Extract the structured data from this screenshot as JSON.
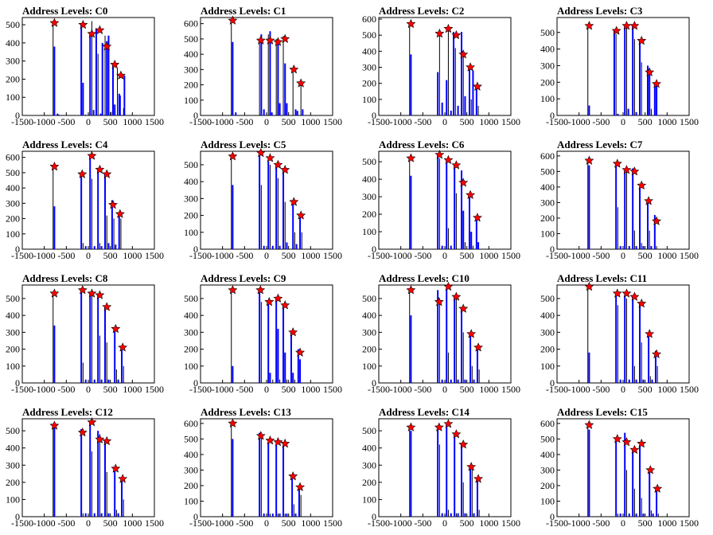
{
  "chart_data": [
    {
      "type": "bar",
      "title": "Address Levels: C0",
      "xlim": [
        -1500,
        1500
      ],
      "ylim": [
        0,
        540
      ],
      "xticks": [
        -1500,
        -1000,
        -500,
        0,
        500,
        1000,
        1500
      ],
      "yticks": [
        0,
        100,
        200,
        300,
        400,
        500
      ],
      "x": [
        -800,
        -770,
        -700,
        -670,
        -160,
        -120,
        -60,
        -30,
        40,
        80,
        120,
        180,
        220,
        280,
        320,
        380,
        420,
        460,
        520,
        560,
        600,
        660,
        700,
        720,
        800,
        820
      ],
      "values": [
        520,
        380,
        10,
        5,
        500,
        180,
        5,
        2,
        460,
        520,
        30,
        480,
        340,
        10,
        400,
        440,
        410,
        440,
        20,
        280,
        60,
        260,
        120,
        110,
        40,
        220
      ],
      "markers": {
        "x": [
          -770,
          -120,
          80,
          260,
          420,
          600,
          740
        ],
        "y": [
          510,
          500,
          450,
          470,
          380,
          280,
          220
        ]
      }
    },
    {
      "type": "bar",
      "title": "Address Levels: C1",
      "xlim": [
        -1500,
        1500
      ],
      "ylim": [
        0,
        640
      ],
      "xticks": [
        -1500,
        -1000,
        -500,
        0,
        500,
        1000,
        1500
      ],
      "yticks": [
        0,
        100,
        200,
        300,
        400,
        500,
        600
      ],
      "x": [
        -800,
        -770,
        -700,
        -160,
        -120,
        -60,
        40,
        80,
        120,
        220,
        260,
        300,
        380,
        420,
        460,
        600,
        660,
        700,
        780,
        820
      ],
      "values": [
        620,
        480,
        20,
        490,
        530,
        40,
        530,
        550,
        20,
        500,
        480,
        80,
        520,
        340,
        80,
        300,
        40,
        30,
        200,
        40
      ],
      "markers": {
        "x": [
          -770,
          -130,
          80,
          260,
          420,
          620,
          780
        ],
        "y": [
          620,
          490,
          490,
          480,
          500,
          300,
          210
        ]
      }
    },
    {
      "type": "bar",
      "title": "Address Levels: C2",
      "xlim": [
        -1500,
        1500
      ],
      "ylim": [
        0,
        610
      ],
      "xticks": [
        -1500,
        -1000,
        -500,
        0,
        500,
        1000,
        1500
      ],
      "yticks": [
        0,
        100,
        200,
        300,
        400,
        500,
        600
      ],
      "x": [
        -800,
        -770,
        -160,
        -120,
        -60,
        40,
        80,
        140,
        200,
        240,
        300,
        380,
        420,
        460,
        560,
        600,
        640,
        720,
        760
      ],
      "values": [
        570,
        380,
        270,
        520,
        80,
        220,
        540,
        30,
        520,
        420,
        60,
        520,
        370,
        120,
        300,
        100,
        280,
        180,
        60
      ],
      "markers": {
        "x": [
          -770,
          -120,
          80,
          260,
          420,
          580,
          740
        ],
        "y": [
          570,
          510,
          540,
          500,
          380,
          300,
          180
        ]
      }
    },
    {
      "type": "bar",
      "title": "Address Levels: C3",
      "xlim": [
        -1500,
        1500
      ],
      "ylim": [
        0,
        590
      ],
      "xticks": [
        -1500,
        -1000,
        -500,
        0,
        500,
        1000,
        1500
      ],
      "yticks": [
        0,
        100,
        200,
        300,
        400,
        500
      ],
      "x": [
        -800,
        -770,
        -200,
        -160,
        -120,
        40,
        80,
        120,
        220,
        260,
        300,
        380,
        420,
        560,
        600,
        640,
        720,
        760
      ],
      "values": [
        540,
        60,
        510,
        490,
        10,
        540,
        550,
        40,
        540,
        460,
        20,
        460,
        320,
        300,
        260,
        40,
        200,
        180
      ],
      "markers": {
        "x": [
          -770,
          -150,
          80,
          260,
          420,
          600,
          760
        ],
        "y": [
          540,
          510,
          540,
          540,
          450,
          260,
          190
        ]
      }
    },
    {
      "type": "bar",
      "title": "Address Levels: C4",
      "xlim": [
        -1500,
        1500
      ],
      "ylim": [
        0,
        640
      ],
      "xticks": [
        -1500,
        -1000,
        -500,
        0,
        500,
        1000,
        1500
      ],
      "yticks": [
        0,
        100,
        200,
        300,
        400,
        500,
        600
      ],
      "x": [
        -800,
        -770,
        -160,
        -120,
        -60,
        40,
        80,
        140,
        220,
        260,
        300,
        380,
        420,
        460,
        540,
        580,
        620,
        700,
        740
      ],
      "values": [
        540,
        280,
        500,
        40,
        20,
        620,
        460,
        20,
        530,
        40,
        20,
        500,
        220,
        40,
        320,
        200,
        30,
        240,
        200
      ],
      "markers": {
        "x": [
          -770,
          -140,
          80,
          260,
          420,
          560,
          720
        ],
        "y": [
          540,
          490,
          610,
          520,
          490,
          290,
          230
        ]
      }
    },
    {
      "type": "bar",
      "title": "Address Levels: C5",
      "xlim": [
        -1500,
        1500
      ],
      "ylim": [
        0,
        580
      ],
      "xticks": [
        -1500,
        -1000,
        -500,
        0,
        500,
        1000,
        1500
      ],
      "yticks": [
        0,
        100,
        200,
        300,
        400,
        500
      ],
      "x": [
        -800,
        -770,
        -160,
        -120,
        -60,
        40,
        80,
        140,
        220,
        260,
        300,
        380,
        420,
        460,
        600,
        640,
        680,
        760,
        800
      ],
      "values": [
        550,
        380,
        560,
        380,
        20,
        520,
        500,
        20,
        500,
        420,
        20,
        470,
        280,
        40,
        280,
        100,
        30,
        200,
        100
      ],
      "markers": {
        "x": [
          -770,
          -130,
          80,
          260,
          420,
          620,
          780
        ],
        "y": [
          550,
          570,
          540,
          500,
          470,
          280,
          200
        ]
      }
    },
    {
      "type": "bar",
      "title": "Address Levels: C6",
      "xlim": [
        -1500,
        1500
      ],
      "ylim": [
        0,
        560
      ],
      "xticks": [
        -1500,
        -1000,
        -500,
        0,
        500,
        1000,
        1500
      ],
      "yticks": [
        0,
        100,
        200,
        300,
        400,
        500
      ],
      "x": [
        -800,
        -770,
        -160,
        -120,
        -60,
        40,
        80,
        140,
        220,
        260,
        380,
        420,
        460,
        560,
        600,
        640,
        720,
        760
      ],
      "values": [
        520,
        420,
        540,
        520,
        20,
        510,
        120,
        20,
        480,
        320,
        450,
        220,
        40,
        300,
        100,
        20,
        180,
        40
      ],
      "markers": {
        "x": [
          -770,
          -120,
          80,
          260,
          420,
          580,
          740
        ],
        "y": [
          520,
          540,
          510,
          480,
          380,
          310,
          180
        ]
      }
    },
    {
      "type": "bar",
      "title": "Address Levels: C7",
      "xlim": [
        -1500,
        1500
      ],
      "ylim": [
        0,
        630
      ],
      "xticks": [
        -1500,
        -1000,
        -500,
        0,
        500,
        1000,
        1500
      ],
      "yticks": [
        0,
        100,
        200,
        300,
        400,
        500,
        600
      ],
      "x": [
        -800,
        -770,
        -160,
        -120,
        -60,
        40,
        80,
        140,
        220,
        260,
        300,
        380,
        420,
        460,
        560,
        600,
        640,
        720,
        760
      ],
      "values": [
        570,
        540,
        540,
        270,
        20,
        520,
        500,
        20,
        520,
        120,
        20,
        400,
        40,
        20,
        320,
        120,
        20,
        220,
        20
      ],
      "markers": {
        "x": [
          -770,
          -130,
          80,
          260,
          420,
          580,
          760
        ],
        "y": [
          570,
          550,
          510,
          500,
          410,
          310,
          180
        ]
      }
    },
    {
      "type": "bar",
      "title": "Address Levels: C8",
      "xlim": [
        -1500,
        1500
      ],
      "ylim": [
        0,
        580
      ],
      "xticks": [
        -1500,
        -1000,
        -500,
        0,
        500,
        1000,
        1500
      ],
      "yticks": [
        0,
        100,
        200,
        300,
        400,
        500
      ],
      "x": [
        -800,
        -770,
        -160,
        -120,
        -60,
        40,
        80,
        140,
        220,
        260,
        300,
        380,
        420,
        460,
        600,
        640,
        680,
        760,
        800
      ],
      "values": [
        530,
        340,
        550,
        120,
        20,
        530,
        520,
        20,
        520,
        280,
        20,
        460,
        240,
        20,
        320,
        80,
        20,
        210,
        100
      ],
      "markers": {
        "x": [
          -770,
          -130,
          80,
          260,
          420,
          620,
          780
        ],
        "y": [
          530,
          550,
          530,
          520,
          450,
          320,
          210
        ]
      }
    },
    {
      "type": "bar",
      "title": "Address Levels: C9",
      "xlim": [
        -1500,
        1500
      ],
      "ylim": [
        0,
        580
      ],
      "xticks": [
        -1500,
        -1000,
        -500,
        0,
        500,
        1000,
        1500
      ],
      "yticks": [
        0,
        100,
        200,
        300,
        400,
        500
      ],
      "x": [
        -800,
        -770,
        -160,
        -120,
        40,
        80,
        140,
        220,
        260,
        300,
        380,
        420,
        460,
        560,
        600,
        640,
        720,
        760
      ],
      "values": [
        550,
        100,
        550,
        480,
        480,
        60,
        20,
        500,
        320,
        20,
        460,
        180,
        20,
        300,
        60,
        20,
        200,
        140
      ],
      "markers": {
        "x": [
          -770,
          -140,
          60,
          260,
          420,
          600,
          760
        ],
        "y": [
          550,
          550,
          480,
          500,
          460,
          300,
          180
        ]
      }
    },
    {
      "type": "bar",
      "title": "Address Levels: C10",
      "xlim": [
        -1500,
        1500
      ],
      "ylim": [
        0,
        580
      ],
      "xticks": [
        -1500,
        -1000,
        -500,
        0,
        500,
        1000,
        1500
      ],
      "yticks": [
        0,
        100,
        200,
        300,
        400,
        500
      ],
      "x": [
        -800,
        -770,
        -160,
        -120,
        -60,
        40,
        80,
        140,
        220,
        260,
        300,
        380,
        420,
        460,
        580,
        620,
        660,
        740,
        780
      ],
      "values": [
        550,
        400,
        550,
        480,
        20,
        560,
        180,
        20,
        510,
        500,
        20,
        440,
        300,
        20,
        290,
        100,
        20,
        210,
        80
      ],
      "markers": {
        "x": [
          -770,
          -130,
          80,
          260,
          420,
          600,
          760
        ],
        "y": [
          550,
          480,
          570,
          510,
          440,
          290,
          210
        ]
      }
    },
    {
      "type": "bar",
      "title": "Address Levels: C11",
      "xlim": [
        -1500,
        1500
      ],
      "ylim": [
        0,
        580
      ],
      "xticks": [
        -1500,
        -1000,
        -500,
        0,
        500,
        1000,
        1500
      ],
      "yticks": [
        0,
        100,
        200,
        300,
        400,
        500
      ],
      "x": [
        -800,
        -770,
        -160,
        -120,
        -60,
        40,
        80,
        140,
        220,
        260,
        300,
        380,
        420,
        460,
        580,
        620,
        660,
        740,
        780
      ],
      "values": [
        570,
        180,
        540,
        460,
        20,
        520,
        500,
        20,
        510,
        100,
        20,
        470,
        240,
        20,
        300,
        40,
        20,
        190,
        100
      ],
      "markers": {
        "x": [
          -770,
          -130,
          80,
          260,
          420,
          600,
          760
        ],
        "y": [
          570,
          530,
          530,
          510,
          470,
          290,
          170
        ]
      }
    },
    {
      "type": "bar",
      "title": "Address Levels: C12",
      "xlim": [
        -1500,
        1500
      ],
      "ylim": [
        0,
        570
      ],
      "xticks": [
        -1500,
        -1000,
        -500,
        0,
        500,
        1000,
        1500
      ],
      "yticks": [
        0,
        100,
        200,
        300,
        400,
        500
      ],
      "x": [
        -800,
        -770,
        -160,
        -120,
        -60,
        40,
        80,
        140,
        220,
        260,
        300,
        380,
        420,
        460,
        600,
        640,
        680,
        760,
        800
      ],
      "values": [
        530,
        520,
        510,
        20,
        20,
        550,
        380,
        20,
        500,
        480,
        20,
        440,
        260,
        20,
        280,
        40,
        20,
        220,
        100
      ],
      "markers": {
        "x": [
          -770,
          -130,
          80,
          260,
          420,
          620,
          780
        ],
        "y": [
          530,
          490,
          550,
          450,
          440,
          280,
          220
        ]
      }
    },
    {
      "type": "bar",
      "title": "Address Levels: C13",
      "xlim": [
        -1500,
        1500
      ],
      "ylim": [
        0,
        630
      ],
      "xticks": [
        -1500,
        -1000,
        -500,
        0,
        500,
        1000,
        1500
      ],
      "yticks": [
        0,
        100,
        200,
        300,
        400,
        500,
        600
      ],
      "x": [
        -800,
        -770,
        -160,
        -120,
        -60,
        40,
        80,
        140,
        220,
        260,
        300,
        380,
        420,
        460,
        580,
        620,
        660,
        740,
        780
      ],
      "values": [
        600,
        500,
        540,
        520,
        20,
        480,
        20,
        20,
        460,
        20,
        20,
        460,
        20,
        20,
        260,
        80,
        20,
        180,
        140
      ],
      "markers": {
        "x": [
          -770,
          -130,
          80,
          260,
          420,
          600,
          760
        ],
        "y": [
          600,
          520,
          490,
          480,
          470,
          260,
          190
        ]
      }
    },
    {
      "type": "bar",
      "title": "Address Levels: C14",
      "xlim": [
        -1500,
        1500
      ],
      "ylim": [
        0,
        570
      ],
      "xticks": [
        -1500,
        -1000,
        -500,
        0,
        500,
        1000,
        1500
      ],
      "yticks": [
        0,
        100,
        200,
        300,
        400,
        500
      ],
      "x": [
        -800,
        -770,
        -160,
        -120,
        -60,
        40,
        80,
        140,
        220,
        260,
        300,
        380,
        420,
        460,
        580,
        620,
        660,
        740,
        780
      ],
      "values": [
        520,
        500,
        520,
        420,
        20,
        540,
        40,
        20,
        480,
        20,
        20,
        420,
        200,
        20,
        290,
        280,
        20,
        220,
        40
      ],
      "markers": {
        "x": [
          -770,
          -130,
          80,
          260,
          420,
          600,
          760
        ],
        "y": [
          520,
          520,
          540,
          480,
          420,
          290,
          220
        ]
      }
    },
    {
      "type": "bar",
      "title": "Address Levels: C15",
      "xlim": [
        -1500,
        1500
      ],
      "ylim": [
        0,
        630
      ],
      "xticks": [
        -1500,
        -1000,
        -500,
        0,
        500,
        1000,
        1500
      ],
      "yticks": [
        0,
        100,
        200,
        300,
        400,
        500,
        600
      ],
      "x": [
        -800,
        -770,
        -160,
        -120,
        -60,
        40,
        80,
        140,
        220,
        260,
        300,
        380,
        420,
        460,
        600,
        640,
        680,
        760,
        800
      ],
      "values": [
        590,
        560,
        500,
        20,
        20,
        540,
        300,
        20,
        440,
        180,
        20,
        460,
        120,
        20,
        300,
        40,
        20,
        190,
        20
      ],
      "markers": {
        "x": [
          -770,
          -130,
          80,
          260,
          420,
          620,
          780
        ],
        "y": [
          590,
          500,
          480,
          430,
          470,
          300,
          180
        ]
      }
    }
  ]
}
